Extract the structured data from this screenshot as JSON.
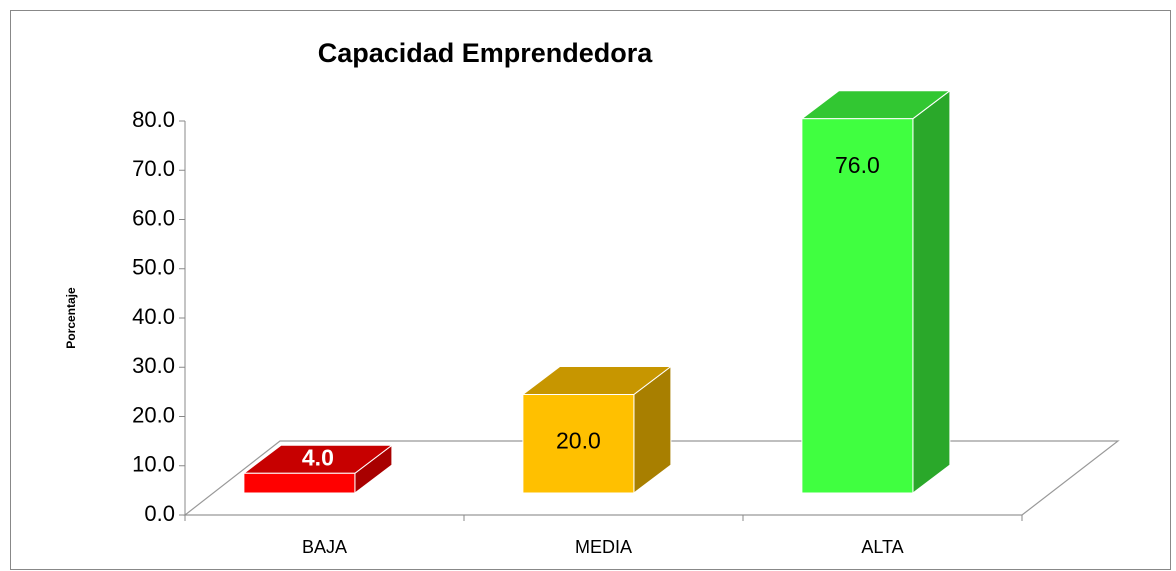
{
  "chart_data": {
    "type": "bar3d",
    "title": "Capacidad Emprendedora",
    "y_label": "Porcentaje",
    "categories": [
      "BAJA",
      "MEDIA",
      "ALTA"
    ],
    "values": [
      4,
      20,
      76
    ],
    "value_labels": [
      "4.0",
      "20.0",
      "76.0"
    ],
    "colors": [
      "#ff0000",
      "#ffc000",
      "#40ff40"
    ],
    "ylim": [
      0,
      80
    ],
    "yticks": [
      {
        "value": 0,
        "label": "0.0"
      },
      {
        "value": 10,
        "label": "10.0"
      },
      {
        "value": 20,
        "label": "20.0"
      },
      {
        "value": 30,
        "label": "30.0"
      },
      {
        "value": 40,
        "label": "40.0"
      },
      {
        "value": 50,
        "label": "50.0"
      },
      {
        "value": 60,
        "label": "60.0"
      },
      {
        "value": 70,
        "label": "70.0"
      },
      {
        "value": 80,
        "label": "80.0"
      }
    ]
  }
}
